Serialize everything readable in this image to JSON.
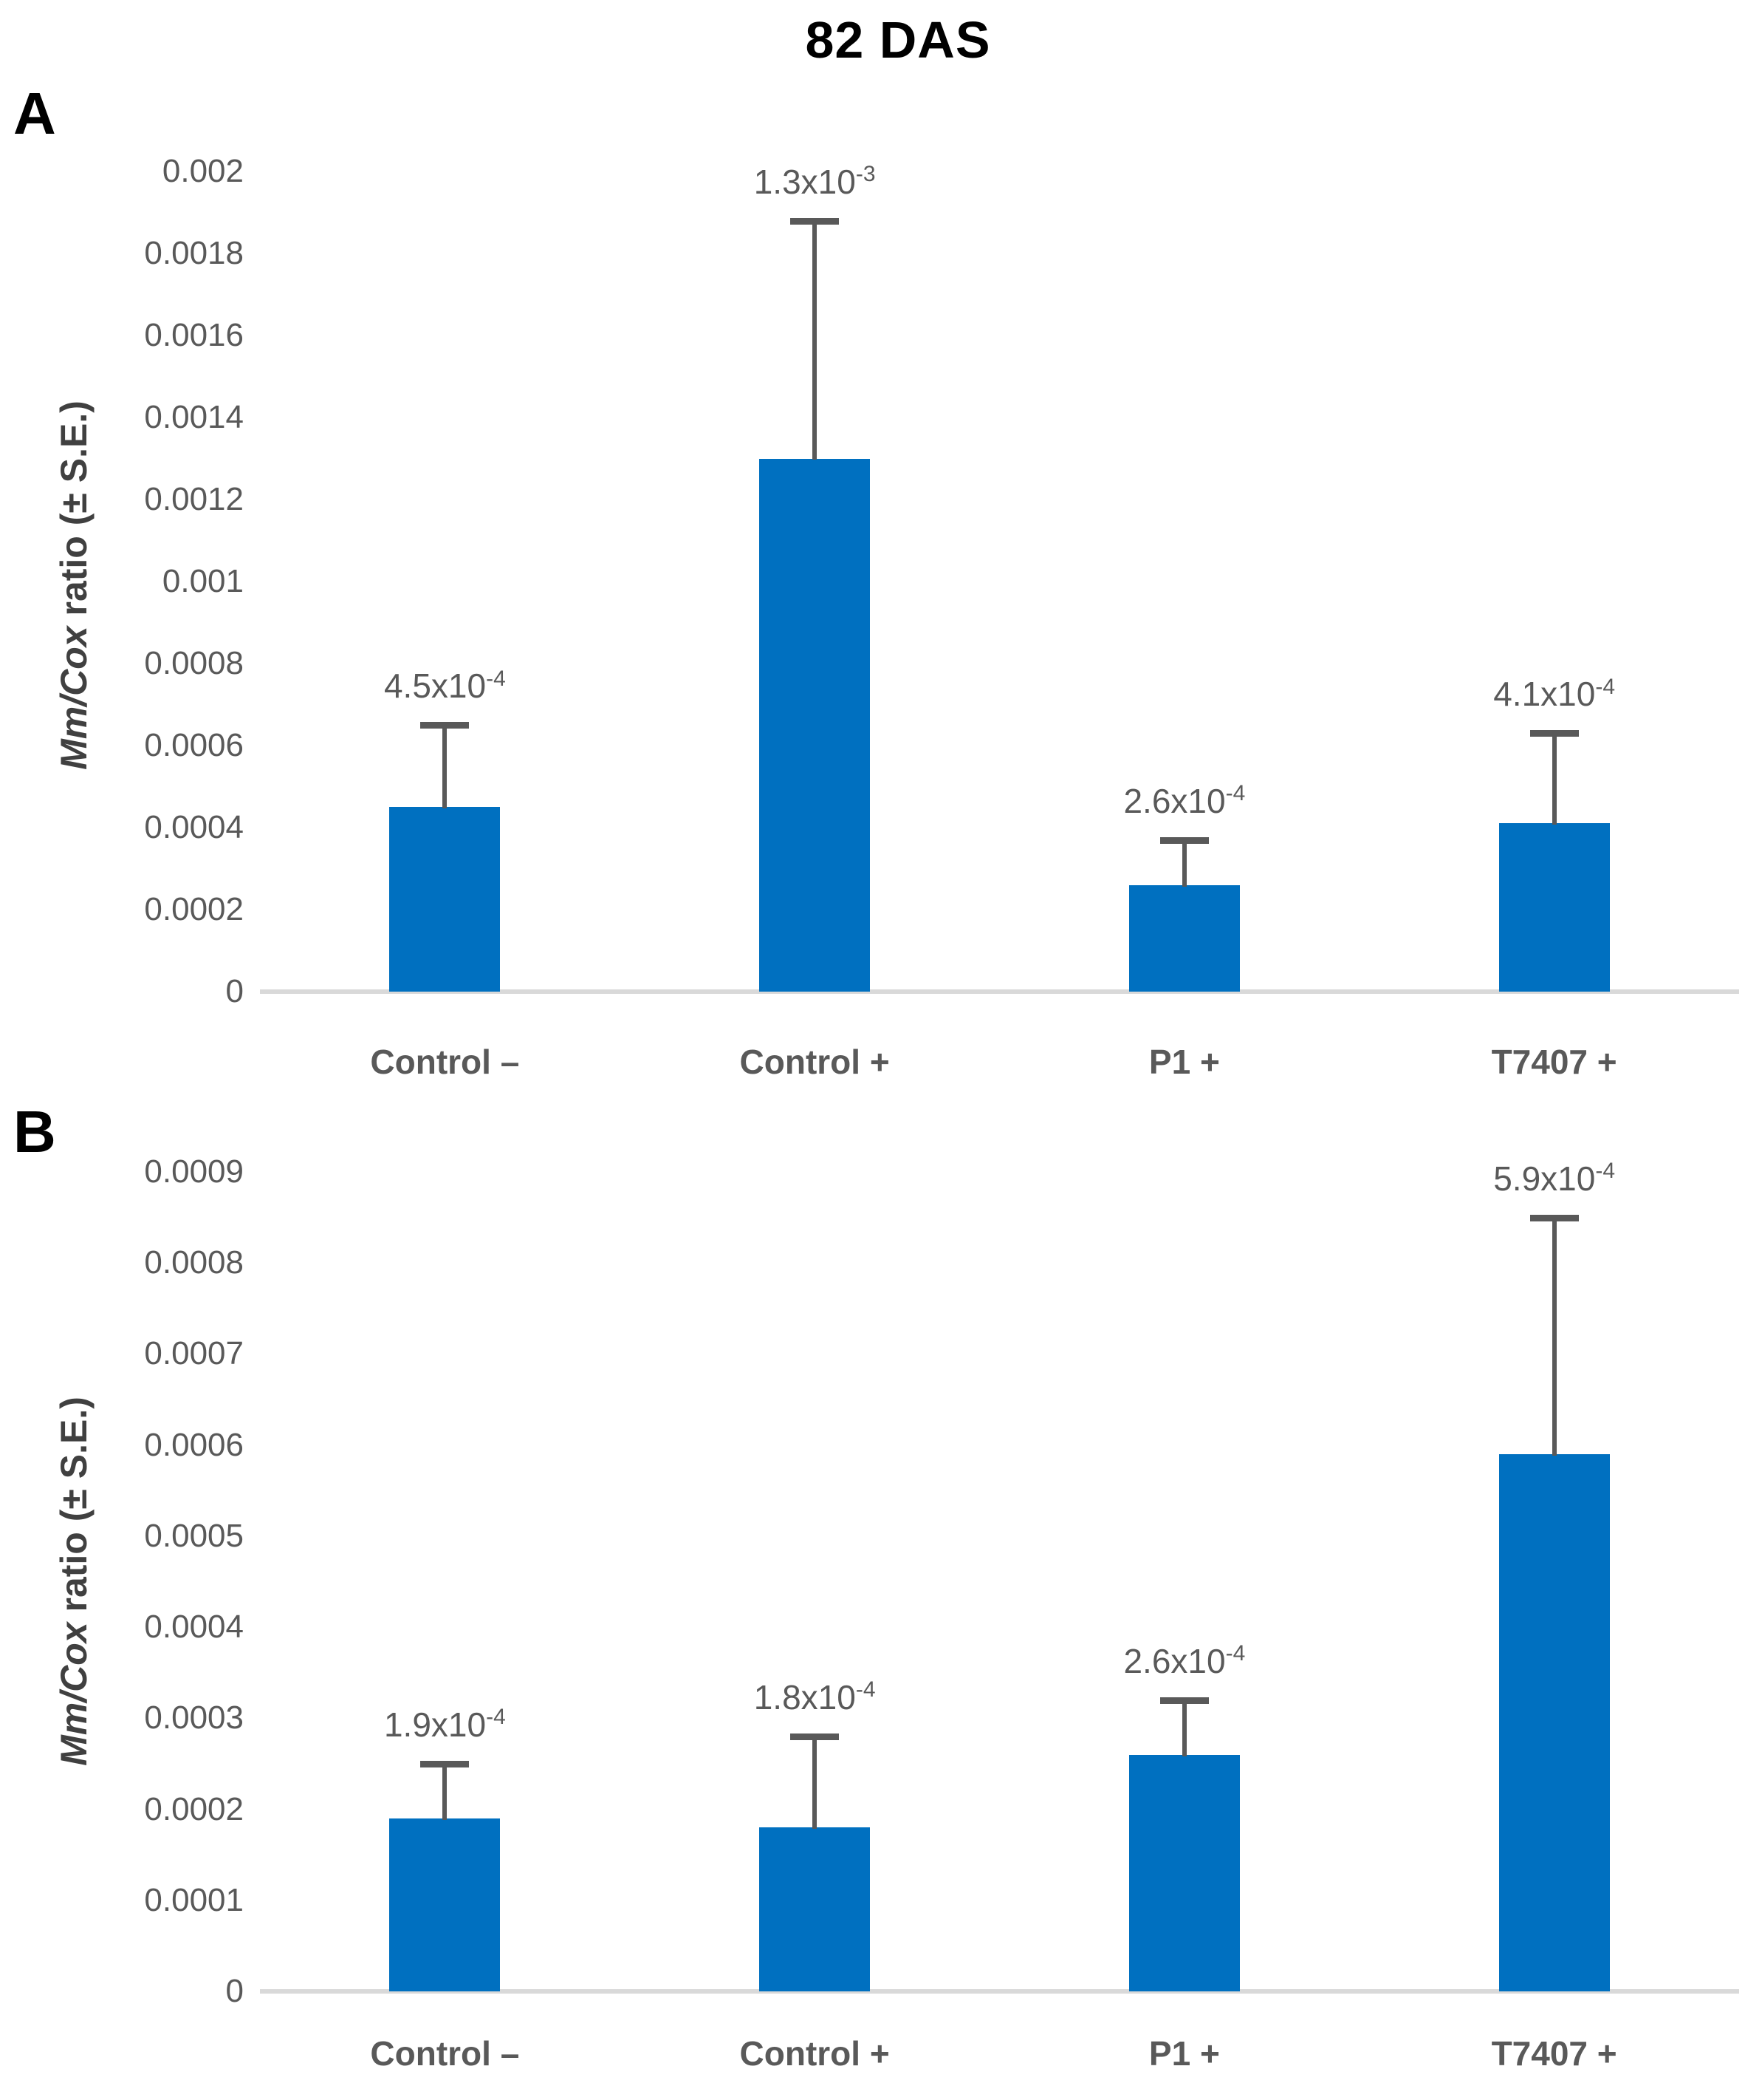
{
  "figure_title": "82 DAS",
  "colors": {
    "bar_fill": "#0070C0",
    "error_bar": "#595959",
    "axis_text": "#595959",
    "axis_title_text": "#404040",
    "baseline": "#D9D9D9",
    "title_text": "#000000"
  },
  "chart_data": [
    {
      "type": "bar",
      "panel": "A",
      "title": "82 DAS",
      "categories": [
        "Control –",
        "Control +",
        "P1 +",
        "T7407 +"
      ],
      "values": [
        0.00045,
        0.0013,
        0.00026,
        0.00041
      ],
      "error_bar_tops": [
        0.00065,
        0.00188,
        0.00037,
        0.00063
      ],
      "data_labels": [
        {
          "base": "4.5x10",
          "exp": "-4"
        },
        {
          "base": "1.3x10",
          "exp": "-3"
        },
        {
          "base": "2.6x10",
          "exp": "-4"
        },
        {
          "base": "4.1x10",
          "exp": "-4"
        }
      ],
      "ylabel_italic": "Mm/Cox",
      "ylabel_rest": " ratio (± S.E.)",
      "ylim": [
        0,
        0.002
      ],
      "ytick_step": 0.0002,
      "yticks": [
        "0.002",
        "0.0018",
        "0.0016",
        "0.0014",
        "0.0012",
        "0.001",
        "0.0008",
        "0.0006",
        "0.0004",
        "0.0002",
        "0"
      ],
      "grid": false,
      "legend": "none",
      "bar_color": "#0070C0"
    },
    {
      "type": "bar",
      "panel": "B",
      "title": "",
      "categories": [
        "Control –",
        "Control +",
        "P1 +",
        "T7407 +"
      ],
      "values": [
        0.00019,
        0.00018,
        0.00026,
        0.00059
      ],
      "error_bar_tops": [
        0.00025,
        0.00028,
        0.00032,
        0.00085
      ],
      "data_labels": [
        {
          "base": "1.9x10",
          "exp": "-4"
        },
        {
          "base": "1.8x10",
          "exp": "-4"
        },
        {
          "base": "2.6x10",
          "exp": "-4"
        },
        {
          "base": "5.9x10",
          "exp": "-4"
        }
      ],
      "ylabel_italic": "Mm/Cox",
      "ylabel_rest": " ratio (± S.E.)",
      "ylim": [
        0,
        0.0009
      ],
      "ytick_step": 0.0001,
      "yticks": [
        "0.0009",
        "0.0008",
        "0.0007",
        "0.0006",
        "0.0005",
        "0.0004",
        "0.0003",
        "0.0002",
        "0.0001",
        "0"
      ],
      "grid": false,
      "legend": "none",
      "bar_color": "#0070C0"
    }
  ]
}
